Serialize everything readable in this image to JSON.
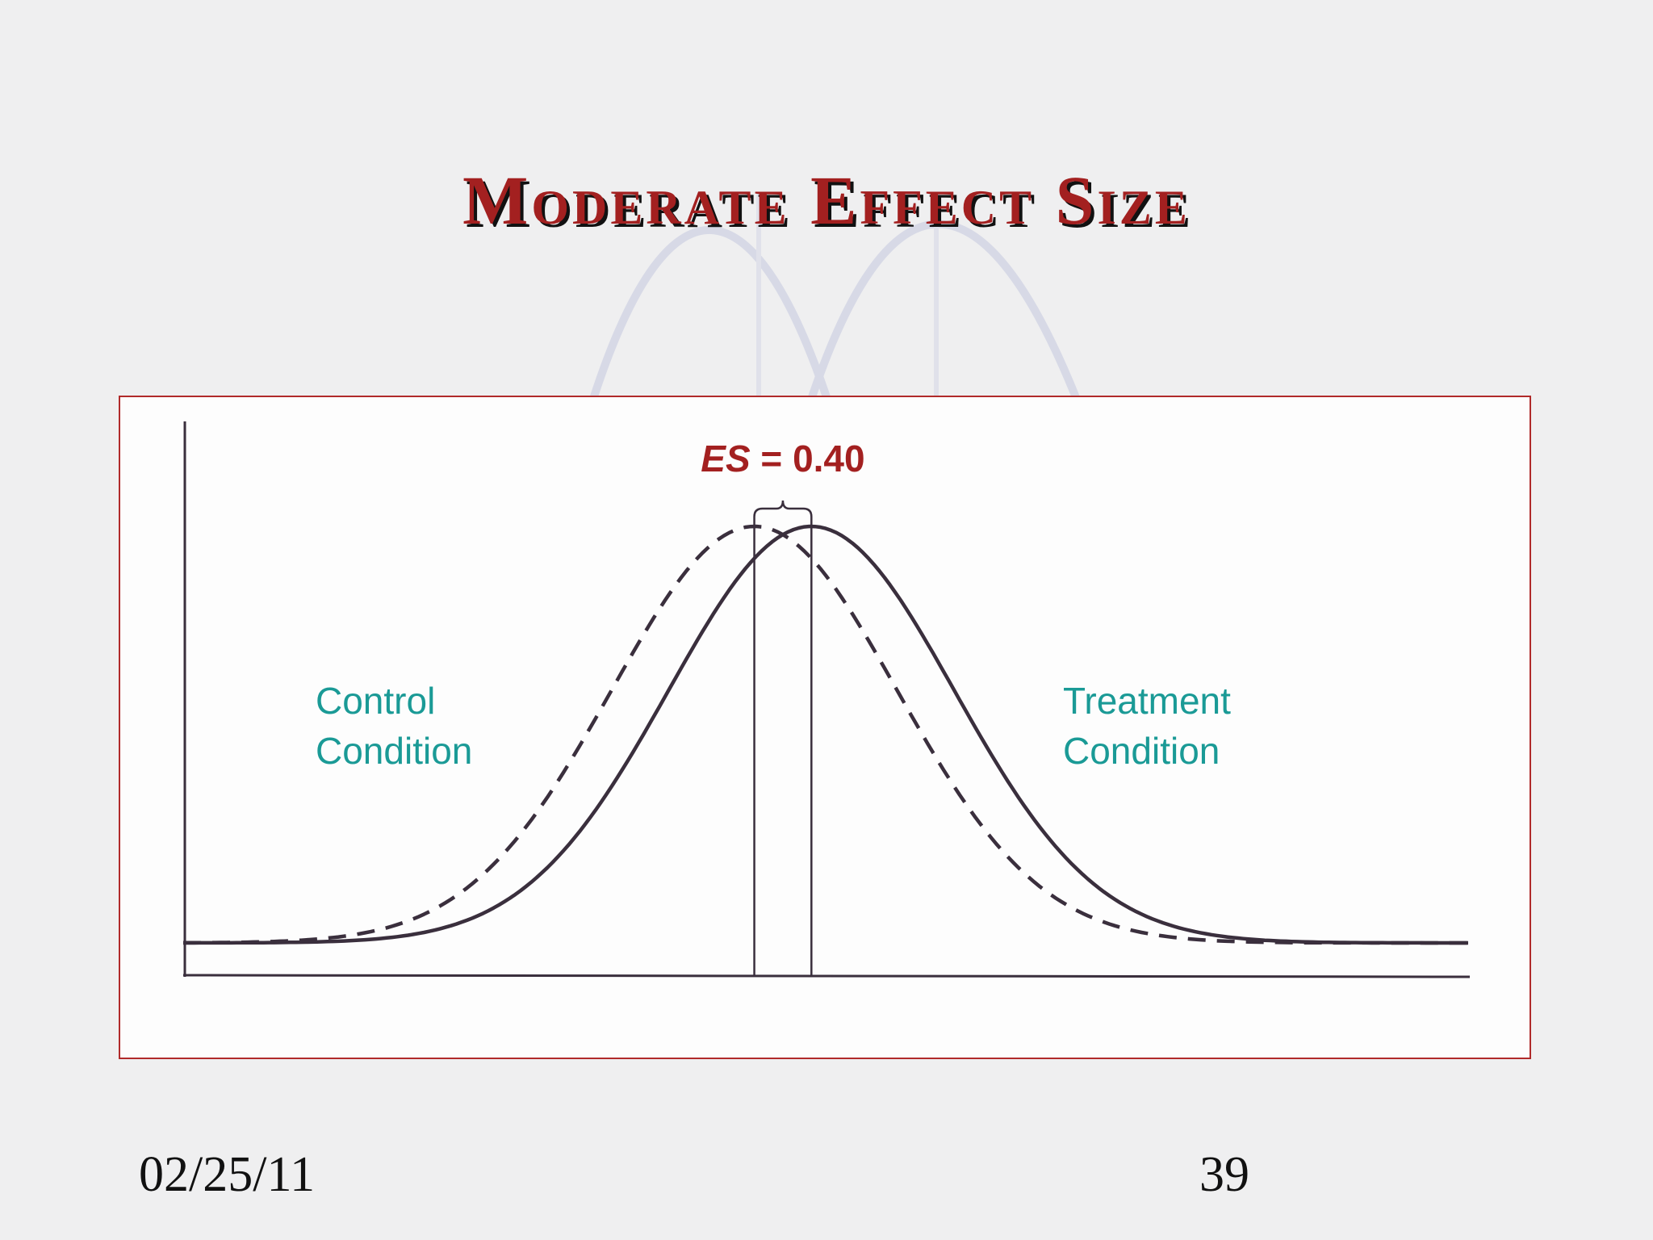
{
  "slide": {
    "title": "Moderate Effect Size",
    "date": "02/25/11",
    "page_number": "39"
  },
  "colors": {
    "title": "#a32020",
    "title_shadow": "#111111",
    "annotation": "#a32020",
    "condition_label": "#1a9a96",
    "curve": "#3a2f3d",
    "frame": "#b02a2a"
  },
  "chart_data": {
    "type": "line",
    "title": "",
    "xlabel": "",
    "ylabel": "",
    "xlim": [
      -4.0,
      5.0
    ],
    "grid": false,
    "legend": "none",
    "series": [
      {
        "name": "Control Condition",
        "style": "dashed",
        "mean": 0.0,
        "sd": 1.0
      },
      {
        "name": "Treatment Condition",
        "style": "solid",
        "mean": 0.4,
        "sd": 1.0
      }
    ],
    "annotation": {
      "prefix": "ES",
      "text": " = 0.40",
      "value": 0.4
    },
    "labels": {
      "control": [
        "Control",
        "Condition"
      ],
      "treatment": [
        "Treatment",
        "Condition"
      ]
    }
  }
}
